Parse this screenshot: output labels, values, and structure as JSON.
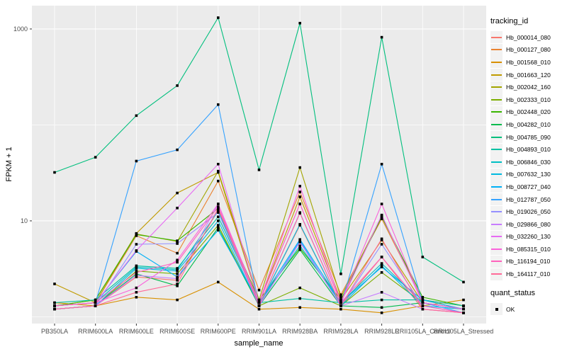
{
  "figure": {
    "colors": {
      "panel_bg": "#EBEBEB",
      "grid": "#FFFFFF",
      "axis_text": "#4D4D4D",
      "axis_title": "#000000",
      "tick_mark": "#333333",
      "legend_key_bg": "#F2F2F2",
      "point": "#000000"
    },
    "legend": {
      "tracking_title": "tracking_id",
      "quant_title": "quant_status",
      "quant_items": [
        {
          "label": "OK",
          "marker": "black-square"
        }
      ]
    }
  },
  "chart_data": {
    "type": "line",
    "title": "",
    "xlabel": "sample_name",
    "ylabel": "FPKM + 1",
    "y_scale": "log10",
    "ylim": [
      0.85,
      1750
    ],
    "grid": true,
    "legend_position": "right",
    "point_color": "#000000",
    "y_ticks": [
      {
        "value": 1000,
        "label": "1000"
      },
      {
        "value": 10,
        "label": "10"
      }
    ],
    "y_minor_breaks": [
      1,
      100
    ],
    "categories": [
      "PB350LA",
      "RRIM600LA",
      "RRIM600LE",
      "RRIM600SE",
      "RRIM600PE",
      "RRIM901LA",
      "RRIM928BA",
      "RRIM928LA",
      "RRIM928LE",
      "RRII105LA_Control",
      "RRII105LA_Stressed"
    ],
    "series": [
      {
        "name": "Hb_000014_080",
        "color": "#F8766D",
        "values": [
          1.2,
          1.3,
          2.6,
          2.4,
          13,
          1.3,
          9,
          1.3,
          4.2,
          1.2,
          1.1
        ]
      },
      {
        "name": "Hb_000127_080",
        "color": "#EA8331",
        "values": [
          1.3,
          1.4,
          7.0,
          4.6,
          26,
          1.9,
          20,
          1.7,
          10.5,
          1.5,
          1.2
        ]
      },
      {
        "name": "Hb_001568_010",
        "color": "#D89000",
        "values": [
          1.4,
          1.3,
          1.6,
          1.5,
          2.3,
          1.2,
          1.25,
          1.2,
          1.1,
          1.3,
          1.5
        ]
      },
      {
        "name": "Hb_001663_120",
        "color": "#C09B00",
        "values": [
          2.2,
          1.4,
          7.4,
          19.5,
          32,
          1.4,
          17.8,
          1.5,
          6.3,
          1.4,
          1.2
        ]
      },
      {
        "name": "Hb_002042_160",
        "color": "#A3A500",
        "values": [
          1.3,
          1.5,
          7.3,
          6.1,
          33,
          1.5,
          36,
          1.6,
          11.2,
          1.5,
          1.3
        ]
      },
      {
        "name": "Hb_002333_010",
        "color": "#7CAE00",
        "values": [
          1.2,
          1.3,
          3.0,
          2.8,
          9,
          1.3,
          2.0,
          1.3,
          2.9,
          1.4,
          1.2
        ]
      },
      {
        "name": "Hb_002448_020",
        "color": "#39B600",
        "values": [
          1.3,
          1.5,
          7.2,
          6.2,
          13.5,
          1.5,
          5.2,
          1.5,
          11,
          1.6,
          1.3
        ]
      },
      {
        "name": "Hb_004282_010",
        "color": "#00BB4E",
        "values": [
          1.2,
          1.3,
          2.8,
          2.1,
          8.5,
          1.3,
          5.0,
          1.3,
          1.25,
          1.4,
          1.2
        ]
      },
      {
        "name": "Hb_004785_090",
        "color": "#00BF7D",
        "values": [
          32,
          46,
          125,
          257,
          1310,
          34,
          1150,
          2.8,
          820,
          4.2,
          2.3
        ]
      },
      {
        "name": "Hb_004893_010",
        "color": "#00C1A3",
        "values": [
          1.4,
          1.5,
          3.4,
          3.2,
          11,
          1.4,
          1.55,
          1.4,
          1.5,
          1.5,
          1.3
        ]
      },
      {
        "name": "Hb_006846_030",
        "color": "#00BFC4",
        "values": [
          1.3,
          1.4,
          3.3,
          3.1,
          12.6,
          1.4,
          5.5,
          1.4,
          3.6,
          1.4,
          1.2
        ]
      },
      {
        "name": "Hb_007632_130",
        "color": "#00BAE0",
        "values": [
          1.2,
          1.3,
          3.2,
          3.0,
          10,
          1.3,
          9.2,
          1.3,
          3.4,
          1.3,
          1.2
        ]
      },
      {
        "name": "Hb_008727_040",
        "color": "#00B0F6",
        "values": [
          1.3,
          1.4,
          4.8,
          2.6,
          8,
          1.4,
          6.4,
          1.4,
          3.3,
          1.5,
          1.2
        ]
      },
      {
        "name": "Hb_012787_050",
        "color": "#35A2FF",
        "values": [
          1.3,
          1.4,
          42,
          55,
          163,
          1.3,
          6.2,
          1.3,
          39,
          1.4,
          1.1
        ]
      },
      {
        "name": "Hb_019026_050",
        "color": "#9590FF",
        "values": [
          1.2,
          1.3,
          5.7,
          5.8,
          12.2,
          1.3,
          12.2,
          1.3,
          5.7,
          1.3,
          1.1
        ]
      },
      {
        "name": "Hb_029866_080",
        "color": "#C77CFF",
        "values": [
          1.2,
          1.3,
          2.7,
          2.5,
          15,
          1.3,
          6.0,
          1.3,
          1.8,
          1.2,
          1.1
        ]
      },
      {
        "name": "Hb_032260_130",
        "color": "#E76BF3",
        "values": [
          1.3,
          1.4,
          4.9,
          13.6,
          39,
          1.4,
          15,
          1.4,
          11.5,
          1.4,
          1.2
        ]
      },
      {
        "name": "Hb_085315_010",
        "color": "#FA62DB",
        "values": [
          1.3,
          1.4,
          2.0,
          3.9,
          15,
          1.4,
          23,
          1.4,
          15,
          1.4,
          1.2
        ]
      },
      {
        "name": "Hb_116194_010",
        "color": "#FF62BC",
        "values": [
          1.3,
          1.4,
          2.9,
          3.7,
          14,
          1.4,
          15,
          1.4,
          4.2,
          1.3,
          1.1
        ]
      },
      {
        "name": "Hb_164117_010",
        "color": "#FF6A98",
        "values": [
          1.2,
          1.3,
          1.8,
          2.2,
          13.5,
          1.3,
          12,
          1.3,
          6.5,
          1.2,
          1.1
        ]
      }
    ]
  }
}
